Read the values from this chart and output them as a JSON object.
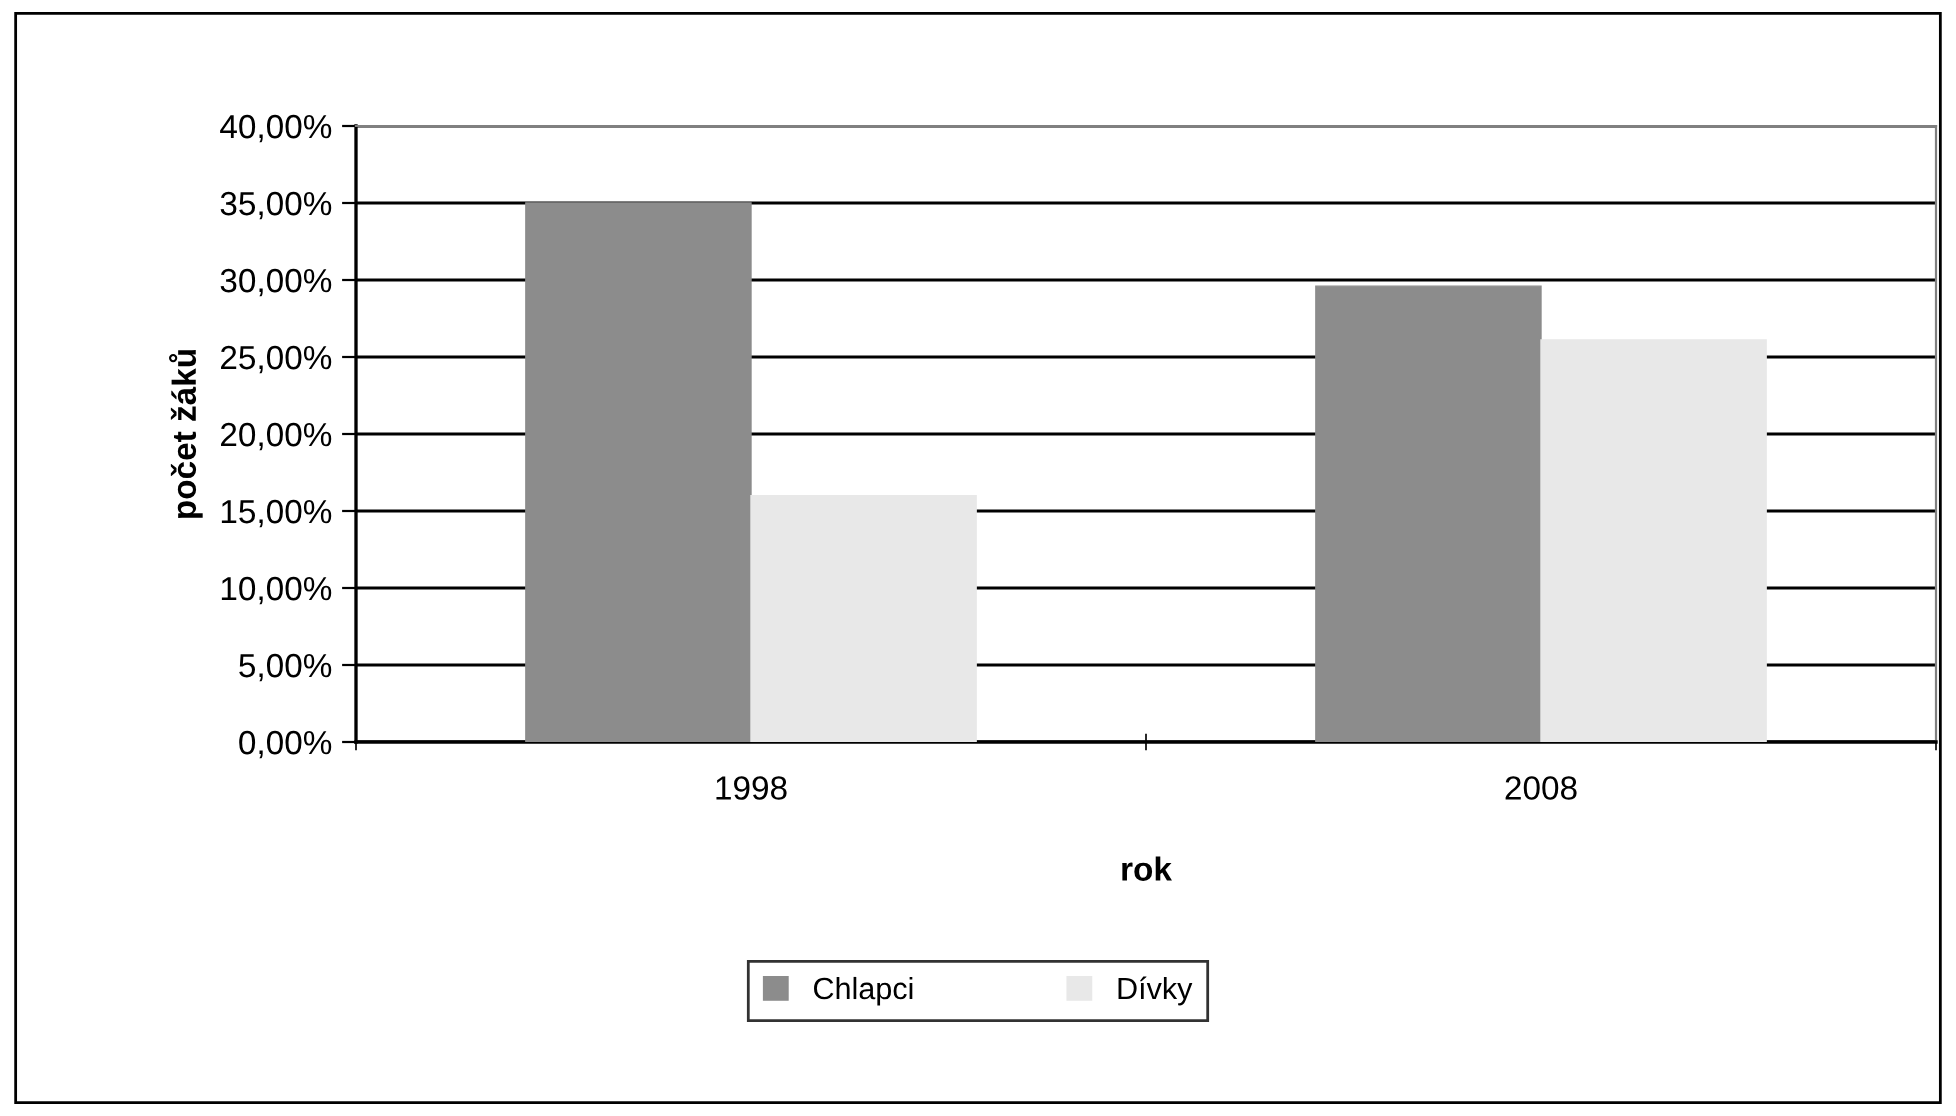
{
  "chart_data": {
    "type": "bar",
    "xlabel": "rok",
    "ylabel": "počet žáků",
    "categories": [
      "1998",
      "2008"
    ],
    "series": [
      {
        "name": "Chlapci",
        "color": "#8c8c8c",
        "values": [
          35.0,
          29.6
        ]
      },
      {
        "name": "Dívky",
        "color": "#e8e8e8",
        "values": [
          16.0,
          26.1
        ]
      }
    ],
    "ylim": [
      0,
      40
    ],
    "yticks": [
      {
        "value": 0,
        "label": "0,00%"
      },
      {
        "value": 5,
        "label": "5,00%"
      },
      {
        "value": 10,
        "label": "10,00%"
      },
      {
        "value": 15,
        "label": "15,00%"
      },
      {
        "value": 20,
        "label": "20,00%"
      },
      {
        "value": 25,
        "label": "25,00%"
      },
      {
        "value": 30,
        "label": "30,00%"
      },
      {
        "value": 35,
        "label": "35,00%"
      },
      {
        "value": 40,
        "label": "40,00%"
      }
    ],
    "grid": "y",
    "legend": "bottom"
  }
}
